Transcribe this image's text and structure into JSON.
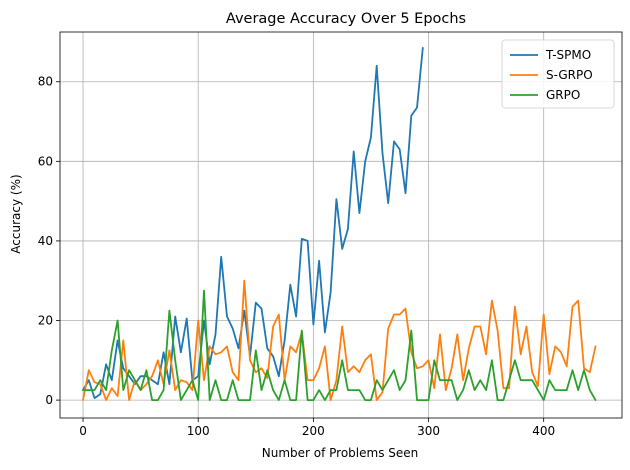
{
  "chart_data": {
    "type": "line",
    "title": "Average Accuracy Over 5 Epochs",
    "xlabel": "Number of Problems Seen",
    "ylabel": "Accuracy (%)",
    "xlim": [
      -20,
      468
    ],
    "ylim": [
      -4.5,
      92.5
    ],
    "xticks": [
      0,
      100,
      200,
      300,
      400
    ],
    "yticks": [
      0,
      20,
      40,
      60,
      80
    ],
    "grid": true,
    "legend_position": "top-right",
    "series": [
      {
        "name": "T-SPMO",
        "color": "#1f77b4",
        "x": [
          0,
          5,
          10,
          15,
          20,
          25,
          30,
          35,
          40,
          45,
          50,
          55,
          60,
          65,
          70,
          75,
          80,
          85,
          90,
          95,
          100,
          105,
          110,
          115,
          120,
          125,
          130,
          135,
          140,
          145,
          150,
          155,
          160,
          165,
          170,
          175,
          180,
          185,
          190,
          195,
          200,
          205,
          210,
          215,
          220,
          225,
          230,
          235,
          240,
          245,
          250,
          255,
          260,
          265,
          270,
          275,
          280,
          285,
          290,
          295
        ],
        "y": [
          2.5,
          5,
          0.5,
          1.5,
          9,
          5,
          15,
          8,
          6,
          4,
          6,
          6,
          5,
          4,
          12,
          4,
          21,
          12,
          20.5,
          5,
          6,
          20,
          9,
          16.5,
          36,
          21,
          18,
          13,
          22.5,
          11,
          24.5,
          23,
          13,
          11,
          6,
          15,
          29,
          21,
          40.5,
          40,
          19,
          35,
          17,
          27,
          50.5,
          38,
          43,
          62.5,
          47,
          60,
          66,
          84,
          62,
          49.5,
          65,
          63,
          52,
          71.5,
          73.5,
          88.5
        ]
      },
      {
        "name": "S-GRPO",
        "color": "#ff7f0e",
        "x": [
          0,
          5,
          10,
          15,
          20,
          25,
          30,
          35,
          40,
          45,
          50,
          55,
          60,
          65,
          70,
          75,
          80,
          85,
          90,
          95,
          100,
          105,
          110,
          115,
          120,
          125,
          130,
          135,
          140,
          145,
          150,
          155,
          160,
          165,
          170,
          175,
          180,
          185,
          190,
          195,
          200,
          205,
          210,
          215,
          220,
          225,
          230,
          235,
          240,
          245,
          250,
          255,
          260,
          265,
          270,
          275,
          280,
          285,
          290,
          295,
          300,
          305,
          310,
          315,
          320,
          325,
          330,
          335,
          340,
          345,
          350,
          355,
          360,
          365,
          370,
          375,
          380,
          385,
          390,
          395,
          400,
          405,
          410,
          415,
          420,
          425,
          430,
          435,
          440,
          445
        ],
        "y": [
          0,
          7.5,
          4.5,
          4,
          0,
          3,
          1,
          15,
          0,
          5,
          2.5,
          4,
          6,
          10,
          4,
          12.5,
          2.5,
          5,
          4.5,
          2.5,
          20,
          5,
          13.5,
          11.5,
          12,
          13.5,
          7,
          5,
          30,
          10,
          7,
          8,
          5.5,
          18.5,
          21.5,
          5,
          13.5,
          12,
          17,
          5,
          5,
          8,
          13.5,
          0,
          5,
          18.5,
          7,
          8.5,
          7,
          10,
          11.5,
          0,
          2,
          18,
          21.5,
          21.5,
          23,
          12,
          8,
          8.5,
          10,
          3,
          16.5,
          2.5,
          8,
          16.5,
          5,
          13,
          18.5,
          18.5,
          11.5,
          25,
          17.5,
          3,
          3,
          23.5,
          11.5,
          18.5,
          7,
          3.5,
          21.5,
          6.5,
          13.5,
          12,
          8.5,
          23.5,
          25,
          8,
          7,
          13.5
        ]
      },
      {
        "name": "GRPO",
        "color": "#2ca02c",
        "x": [
          0,
          5,
          10,
          15,
          20,
          25,
          30,
          35,
          40,
          45,
          50,
          55,
          60,
          65,
          70,
          75,
          80,
          85,
          90,
          95,
          100,
          105,
          110,
          115,
          120,
          125,
          130,
          135,
          140,
          145,
          150,
          155,
          160,
          165,
          170,
          175,
          180,
          185,
          190,
          195,
          200,
          205,
          210,
          215,
          220,
          225,
          230,
          235,
          240,
          245,
          250,
          255,
          260,
          265,
          270,
          275,
          280,
          285,
          290,
          295,
          300,
          305,
          310,
          315,
          320,
          325,
          330,
          335,
          340,
          345,
          350,
          355,
          360,
          365,
          370,
          375,
          380,
          385,
          390,
          395,
          400,
          405,
          410,
          415,
          420,
          425,
          430,
          435,
          440,
          445
        ],
        "y": [
          2.5,
          2.5,
          2.5,
          5,
          2.5,
          12.5,
          20,
          2.5,
          7.5,
          5,
          2.5,
          7.5,
          0,
          0,
          2.5,
          22.5,
          10,
          0,
          2.5,
          5,
          0,
          27.5,
          0,
          5,
          0,
          0,
          5,
          0,
          0,
          0,
          12.5,
          2.5,
          7.5,
          2.5,
          0,
          5,
          0,
          0,
          17.5,
          0,
          0,
          2.5,
          0,
          2.5,
          2.5,
          10,
          2.5,
          2.5,
          2.5,
          0,
          0,
          5,
          2.5,
          5,
          7.5,
          2.5,
          5,
          17.5,
          0,
          0,
          0,
          10,
          5,
          5,
          5,
          0,
          2.5,
          7.5,
          2.5,
          5,
          2.5,
          10,
          0,
          0,
          5,
          10,
          5,
          5,
          5,
          2.5,
          0,
          5,
          2.5,
          2.5,
          2.5,
          7.5,
          2.5,
          7.5,
          2.5,
          0
        ]
      }
    ]
  }
}
